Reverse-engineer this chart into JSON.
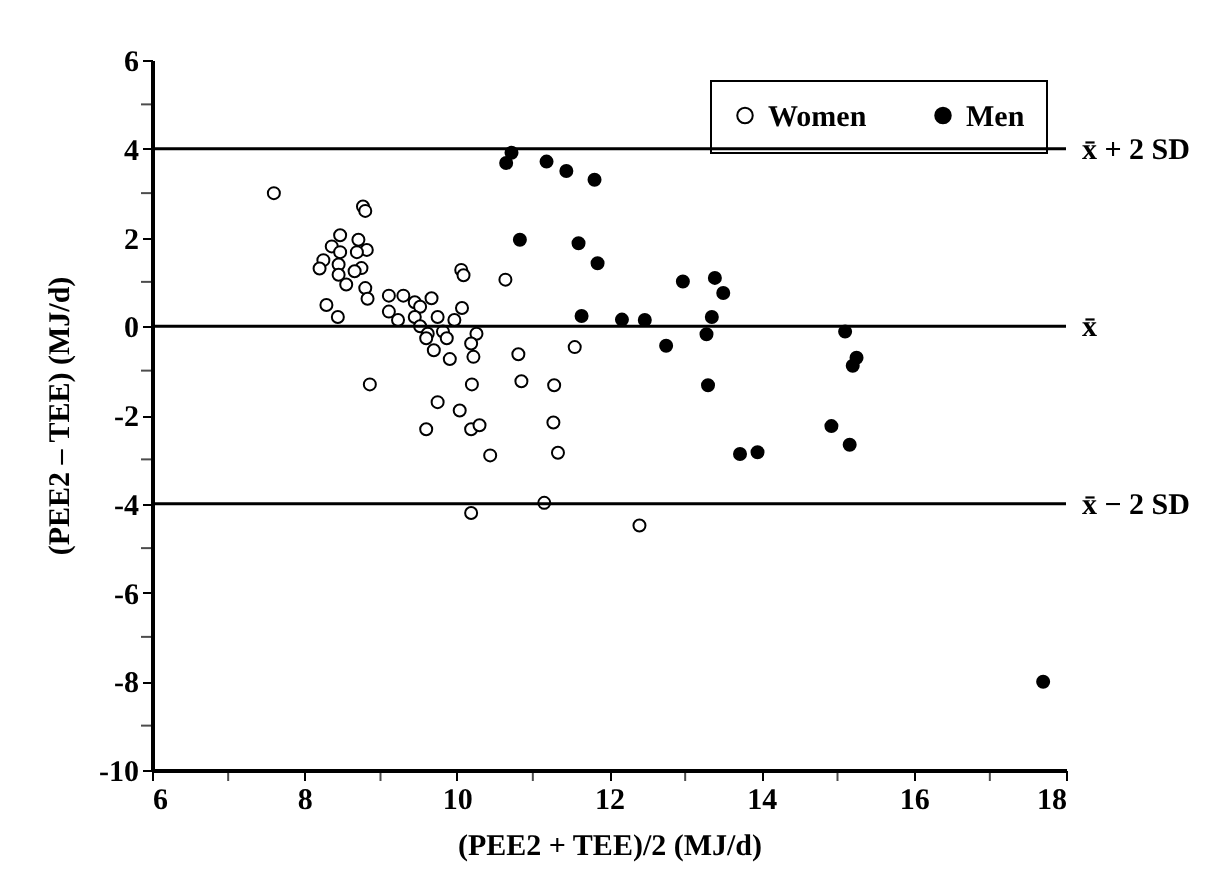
{
  "chart_data": {
    "type": "scatter",
    "xlabel": "(PEE2 + TEE)/2 (MJ/d)",
    "ylabel": "(PEE2 – TEE) (MJ/d)",
    "xlim": [
      6,
      18
    ],
    "xticks": [
      6,
      {
        "value": 7,
        "label": null
      },
      8,
      {
        "value": 9,
        "label": null
      },
      10,
      {
        "value": 11,
        "label": null
      },
      12,
      {
        "value": 13,
        "label": null
      },
      14,
      {
        "value": 15,
        "label": null
      },
      16,
      {
        "value": 17,
        "label": null
      },
      18
    ],
    "ylim": [
      -10,
      6
    ],
    "yticks": [
      -10,
      {
        "value": -9,
        "label": null
      },
      -8,
      {
        "value": -7,
        "label": null
      },
      -6,
      {
        "value": -5,
        "label": null
      },
      -4,
      {
        "value": -3,
        "label": null
      },
      -2,
      {
        "value": -1,
        "label": null
      },
      0,
      {
        "value": 1,
        "label": null
      },
      2,
      {
        "value": 3,
        "label": null
      },
      4,
      {
        "value": 5,
        "label": null
      },
      6
    ],
    "grid": false,
    "legend": "top right",
    "marker": "circle",
    "ref_lines": [
      {
        "axis": "y",
        "value": 4,
        "label": "x̄ + 2 SD"
      },
      {
        "axis": "y",
        "value": 0,
        "label": "x̄"
      },
      {
        "axis": "y",
        "value": -4,
        "label": "x̄ − 2 SD"
      }
    ],
    "series": [
      {
        "name": "Women",
        "color": "#ffffff",
        "x": [
          7.6,
          8.77,
          8.8,
          8.47,
          8.71,
          8.36,
          8.82,
          8.47,
          8.69,
          8.25,
          8.45,
          8.2,
          8.75,
          8.66,
          10.06,
          10.09,
          8.45,
          10.64,
          8.55,
          8.8,
          9.11,
          9.3,
          9.67,
          8.83,
          9.45,
          9.52,
          8.29,
          10.07,
          9.11,
          8.44,
          9.45,
          9.75,
          9.23,
          9.97,
          9.52,
          9.62,
          9.82,
          10.26,
          9.6,
          9.87,
          10.19,
          9.7,
          10.22,
          9.91,
          10.81,
          11.55,
          8.86,
          10.2,
          10.85,
          11.28,
          9.75,
          10.04,
          9.6,
          10.19,
          10.3,
          11.27,
          10.44,
          11.33,
          10.19,
          11.15,
          12.4
        ],
        "values": [
          3.0,
          2.7,
          2.6,
          2.05,
          1.95,
          1.8,
          1.72,
          1.67,
          1.67,
          1.49,
          1.39,
          1.3,
          1.31,
          1.24,
          1.27,
          1.15,
          1.16,
          1.05,
          0.94,
          0.86,
          0.69,
          0.69,
          0.63,
          0.62,
          0.54,
          0.44,
          0.48,
          0.41,
          0.33,
          0.21,
          0.21,
          0.21,
          0.14,
          0.14,
          0.0,
          -0.17,
          -0.12,
          -0.17,
          -0.27,
          -0.27,
          -0.39,
          -0.54,
          -0.69,
          -0.74,
          -0.63,
          -0.47,
          -1.31,
          -1.31,
          -1.24,
          -1.33,
          -1.71,
          -1.9,
          -2.32,
          -2.32,
          -2.23,
          -2.17,
          -2.91,
          -2.85,
          -4.21,
          -3.98,
          -4.49
        ]
      },
      {
        "name": "Men",
        "color": "#000000",
        "x": [
          10.72,
          10.65,
          11.18,
          11.44,
          10.83,
          11.81,
          11.6,
          11.85,
          12.97,
          13.39,
          13.5,
          11.64,
          12.17,
          12.47,
          13.35,
          13.28,
          12.75,
          15.1,
          15.25,
          15.2,
          13.3,
          14.92,
          15.16,
          13.72,
          13.95,
          17.7
        ],
        "values": [
          3.91,
          3.68,
          3.71,
          3.5,
          1.95,
          3.3,
          1.87,
          1.42,
          1.01,
          1.09,
          0.75,
          0.23,
          0.15,
          0.14,
          0.21,
          -0.18,
          -0.44,
          -0.12,
          -0.71,
          -0.89,
          -1.33,
          -2.25,
          -2.67,
          -2.88,
          -2.84,
          -8.01
        ]
      }
    ]
  }
}
